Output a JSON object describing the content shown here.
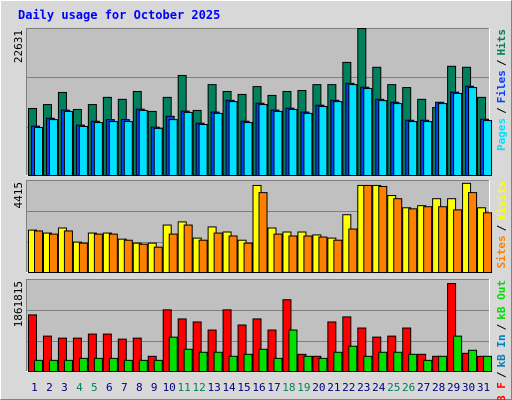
{
  "title": "Daily usage for October 2025",
  "separator": "/",
  "chart_data": [
    {
      "type": "bar",
      "ylim": [
        0,
        22631
      ],
      "yticks": [
        22631
      ],
      "grid_divisions": 3,
      "legend_reversed": true,
      "series": [
        {
          "name": "Hits",
          "color": "#00805c",
          "values": [
            10400,
            11000,
            12850,
            10250,
            11000,
            12100,
            11800,
            13000,
            9950,
            12100,
            15450,
            10100,
            14050,
            13000,
            12550,
            13750,
            12400,
            13000,
            13150,
            14050,
            14050,
            17450,
            22631,
            16700,
            14050,
            13600,
            11800,
            10550,
            16850,
            16700,
            12100
          ]
        },
        {
          "name": "Files",
          "color": "#0040ff",
          "values": [
            7700,
            8900,
            10150,
            7850,
            8450,
            8700,
            8700,
            10300,
            7550,
            9200,
            10000,
            8150,
            9850,
            11650,
            8450,
            11200,
            10150,
            10450,
            9850,
            10900,
            11650,
            14250,
            13650,
            11800,
            11350,
            8600,
            8600,
            11350,
            12900,
            13800,
            8750
          ]
        },
        {
          "name": "Pages",
          "color": "#00e0ff",
          "values": [
            7500,
            8700,
            9950,
            7650,
            8250,
            8400,
            8400,
            10100,
            7350,
            8700,
            9800,
            7950,
            9650,
            11450,
            8250,
            11000,
            9950,
            10250,
            9650,
            10700,
            11450,
            14050,
            13450,
            11600,
            11150,
            8400,
            8400,
            11150,
            12700,
            13600,
            8550
          ]
        }
      ]
    },
    {
      "type": "bar",
      "ylim": [
        0,
        4415
      ],
      "yticks": [
        4415
      ],
      "grid_divisions": 3,
      "legend_reversed": true,
      "series": [
        {
          "name": "Visits",
          "color": "#ffff00",
          "values": [
            2060,
            1920,
            2160,
            1490,
            1920,
            1920,
            1630,
            1440,
            1440,
            2300,
            2450,
            1680,
            2210,
            1970,
            1580,
            4180,
            2160,
            1970,
            1970,
            1830,
            1680,
            2790,
            4180,
            4180,
            3700,
            3120,
            3220,
            3550,
            3550,
            4280,
            3120
          ]
        },
        {
          "name": "Sites",
          "color": "#ff8000",
          "values": [
            2020,
            1870,
            2020,
            1440,
            1870,
            1870,
            1580,
            1390,
            1250,
            1870,
            2300,
            1580,
            1920,
            1780,
            1440,
            3840,
            1870,
            1780,
            1780,
            1730,
            1580,
            2110,
            4180,
            4130,
            3550,
            3070,
            3170,
            3170,
            3020,
            3840,
            2880
          ]
        }
      ]
    },
    {
      "type": "bar",
      "ylim": [
        0,
        1861815
      ],
      "yticks": [
        1861815
      ],
      "grid_divisions": 3,
      "legend_reversed": false,
      "categories": [
        "1",
        "2",
        "3",
        "4",
        "5",
        "6",
        "7",
        "8",
        "9",
        "10",
        "11",
        "12",
        "13",
        "14",
        "15",
        "16",
        "17",
        "18",
        "19",
        "20",
        "21",
        "22",
        "23",
        "24",
        "25",
        "26",
        "27",
        "28",
        "29",
        "30",
        "31"
      ],
      "category_colors": [
        "#000080",
        "#000080",
        "#000080",
        "#00805c",
        "#00805c",
        "#000080",
        "#000080",
        "#000080",
        "#000080",
        "#000080",
        "#00805c",
        "#00805c",
        "#000080",
        "#000080",
        "#000080",
        "#000080",
        "#000080",
        "#00805c",
        "#00805c",
        "#000080",
        "#000080",
        "#000080",
        "#000080",
        "#000080",
        "#00805c",
        "#00805c",
        "#000080",
        "#000080",
        "#000080",
        "#000080",
        "#000080"
      ],
      "series": [
        {
          "name": "kB F",
          "color": "#ff0000",
          "values": [
            1153500,
            728500,
            688000,
            688000,
            769000,
            769000,
            668000,
            688000,
            324000,
            1254700,
            1072600,
            1011900,
            850000,
            1254700,
            951100,
            1072600,
            850000,
            1457000,
            364000,
            324000,
            1011900,
            1113000,
            890400,
            708300,
            728500,
            890400,
            364000,
            324000,
            1780900,
            384000,
            324000
          ]
        },
        {
          "name": "kB In",
          "color": "#0080c0",
          "values": [
            0,
            0,
            0,
            0,
            0,
            0,
            0,
            0,
            0,
            0,
            0,
            0,
            0,
            0,
            0,
            0,
            0,
            0,
            0,
            0,
            0,
            0,
            0,
            0,
            0,
            0,
            0,
            0,
            0,
            0,
            0
          ]
        },
        {
          "name": "kB Out",
          "color": "#00e000",
          "values": [
            243000,
            243000,
            243000,
            283000,
            283000,
            283000,
            243000,
            243000,
            243000,
            708000,
            465000,
            405000,
            405000,
            324000,
            364000,
            465000,
            283000,
            850000,
            324000,
            283000,
            405000,
            526000,
            324000,
            405000,
            405000,
            364000,
            243000,
            324000,
            728000,
            445000,
            324000
          ]
        }
      ]
    }
  ]
}
